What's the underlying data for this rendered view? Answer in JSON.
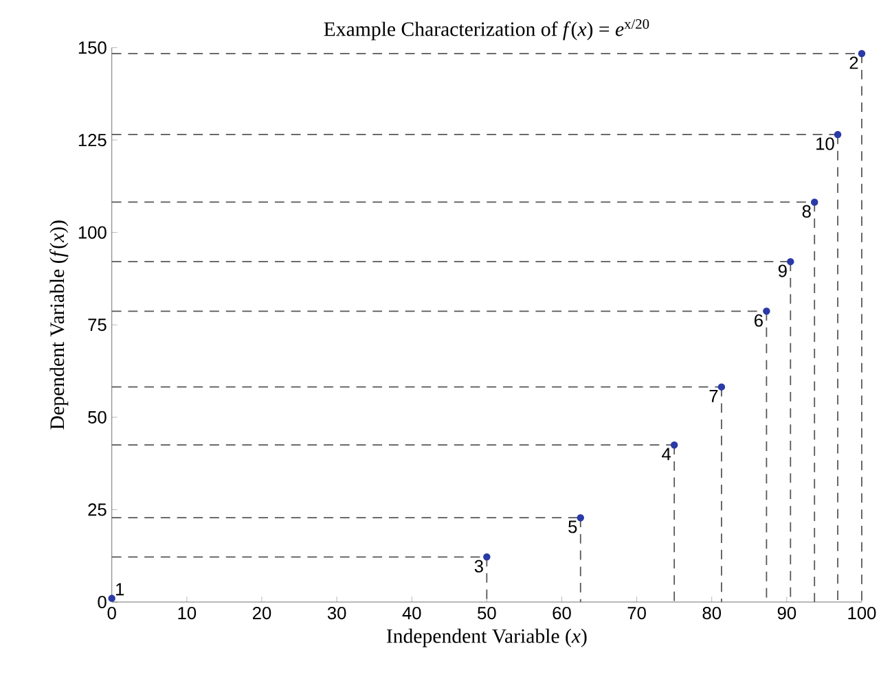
{
  "chart_data": {
    "type": "scatter",
    "title": "Example Characterization of *f*(*x*) = *e*$^{x/20}$",
    "xlabel": "Independent Variable (*x*)",
    "ylabel": "Dependent Variable (*f*(*x*))",
    "xlim": [
      0,
      100
    ],
    "ylim": [
      0,
      150
    ],
    "xticks": [
      0,
      10,
      20,
      30,
      40,
      50,
      60,
      70,
      80,
      90,
      100
    ],
    "yticks": [
      0,
      25,
      50,
      75,
      100,
      125,
      150
    ],
    "grid": false,
    "series": [
      {
        "marker": "circle",
        "color": "#2a3aa6",
        "x": [
          0,
          100,
          50,
          75,
          62.5,
          87.3,
          81.3,
          93.7,
          90.5,
          96.8
        ],
        "values": [
          1,
          148.4,
          12.2,
          42.5,
          22.8,
          78.7,
          58.2,
          108.2,
          92.1,
          126.5
        ]
      },
      {
        "type": "line",
        "marker": "none",
        "line_style": "dashed",
        "color": "#555555",
        "x": [
          0,
          100
        ],
        "values": [
          148.4,
          148.4
        ]
      },
      {
        "type": "line",
        "marker": "none",
        "line_style": "dashed",
        "color": "#555555",
        "x": [
          100,
          100
        ],
        "values": [
          148.4,
          0
        ]
      },
      {
        "type": "line",
        "marker": "none",
        "line_style": "dashed",
        "color": "#555555",
        "x": [
          0,
          50
        ],
        "values": [
          12.2,
          12.2
        ]
      },
      {
        "type": "line",
        "marker": "none",
        "line_style": "dashed",
        "color": "#555555",
        "x": [
          50,
          50
        ],
        "values": [
          12.2,
          0
        ]
      },
      {
        "type": "line",
        "marker": "none",
        "line_style": "dashed",
        "color": "#555555",
        "x": [
          0,
          75
        ],
        "values": [
          42.5,
          42.5
        ]
      },
      {
        "type": "line",
        "marker": "none",
        "line_style": "dashed",
        "color": "#555555",
        "x": [
          75,
          75
        ],
        "values": [
          42.5,
          0
        ]
      },
      {
        "type": "line",
        "marker": "none",
        "line_style": "dashed",
        "color": "#555555",
        "x": [
          0,
          62.5
        ],
        "values": [
          22.8,
          22.8
        ]
      },
      {
        "type": "line",
        "marker": "none",
        "line_style": "dashed",
        "color": "#555555",
        "x": [
          62.5,
          62.5
        ],
        "values": [
          22.8,
          0
        ]
      },
      {
        "type": "line",
        "marker": "none",
        "line_style": "dashed",
        "color": "#555555",
        "x": [
          0,
          87.3
        ],
        "values": [
          78.7,
          78.7
        ]
      },
      {
        "type": "line",
        "marker": "none",
        "line_style": "dashed",
        "color": "#555555",
        "x": [
          87.3,
          87.3
        ],
        "values": [
          78.7,
          0
        ]
      },
      {
        "type": "line",
        "marker": "none",
        "line_style": "dashed",
        "color": "#555555",
        "x": [
          0,
          81.3
        ],
        "values": [
          58.2,
          58.2
        ]
      },
      {
        "type": "line",
        "marker": "none",
        "line_style": "dashed",
        "color": "#555555",
        "x": [
          81.3,
          81.3
        ],
        "values": [
          58.2,
          0
        ]
      },
      {
        "type": "line",
        "marker": "none",
        "line_style": "dashed",
        "color": "#555555",
        "x": [
          0,
          93.7
        ],
        "values": [
          108.2,
          108.2
        ]
      },
      {
        "type": "line",
        "marker": "none",
        "line_style": "dashed",
        "color": "#555555",
        "x": [
          93.7,
          93.7
        ],
        "values": [
          108.2,
          0
        ]
      },
      {
        "type": "line",
        "marker": "none",
        "line_style": "dashed",
        "color": "#555555",
        "x": [
          0,
          90.5
        ],
        "values": [
          92.1,
          92.1
        ]
      },
      {
        "type": "line",
        "marker": "none",
        "line_style": "dashed",
        "color": "#555555",
        "x": [
          90.5,
          90.5
        ],
        "values": [
          92.1,
          0
        ]
      },
      {
        "type": "line",
        "marker": "none",
        "line_style": "dashed",
        "color": "#555555",
        "x": [
          0,
          96.8
        ],
        "values": [
          126.5,
          126.5
        ]
      },
      {
        "type": "line",
        "marker": "none",
        "line_style": "dashed",
        "color": "#555555",
        "x": [
          96.8,
          96.8
        ],
        "values": [
          126.5,
          0
        ]
      }
    ],
    "annotations": [
      {
        "text": "1",
        "x": 0,
        "y": 1
      },
      {
        "text": "2",
        "x": 100,
        "y": 148.4
      },
      {
        "text": "3",
        "x": 50,
        "y": 12.2
      },
      {
        "text": "4",
        "x": 75,
        "y": 42.5
      },
      {
        "text": "5",
        "x": 62.5,
        "y": 22.8
      },
      {
        "text": "6",
        "x": 87.3,
        "y": 78.7
      },
      {
        "text": "7",
        "x": 81.3,
        "y": 58.2
      },
      {
        "text": "8",
        "x": 93.7,
        "y": 108.2
      },
      {
        "text": "9",
        "x": 90.5,
        "y": 92.1
      },
      {
        "text": "10",
        "x": 96.8,
        "y": 126.5
      }
    ]
  }
}
